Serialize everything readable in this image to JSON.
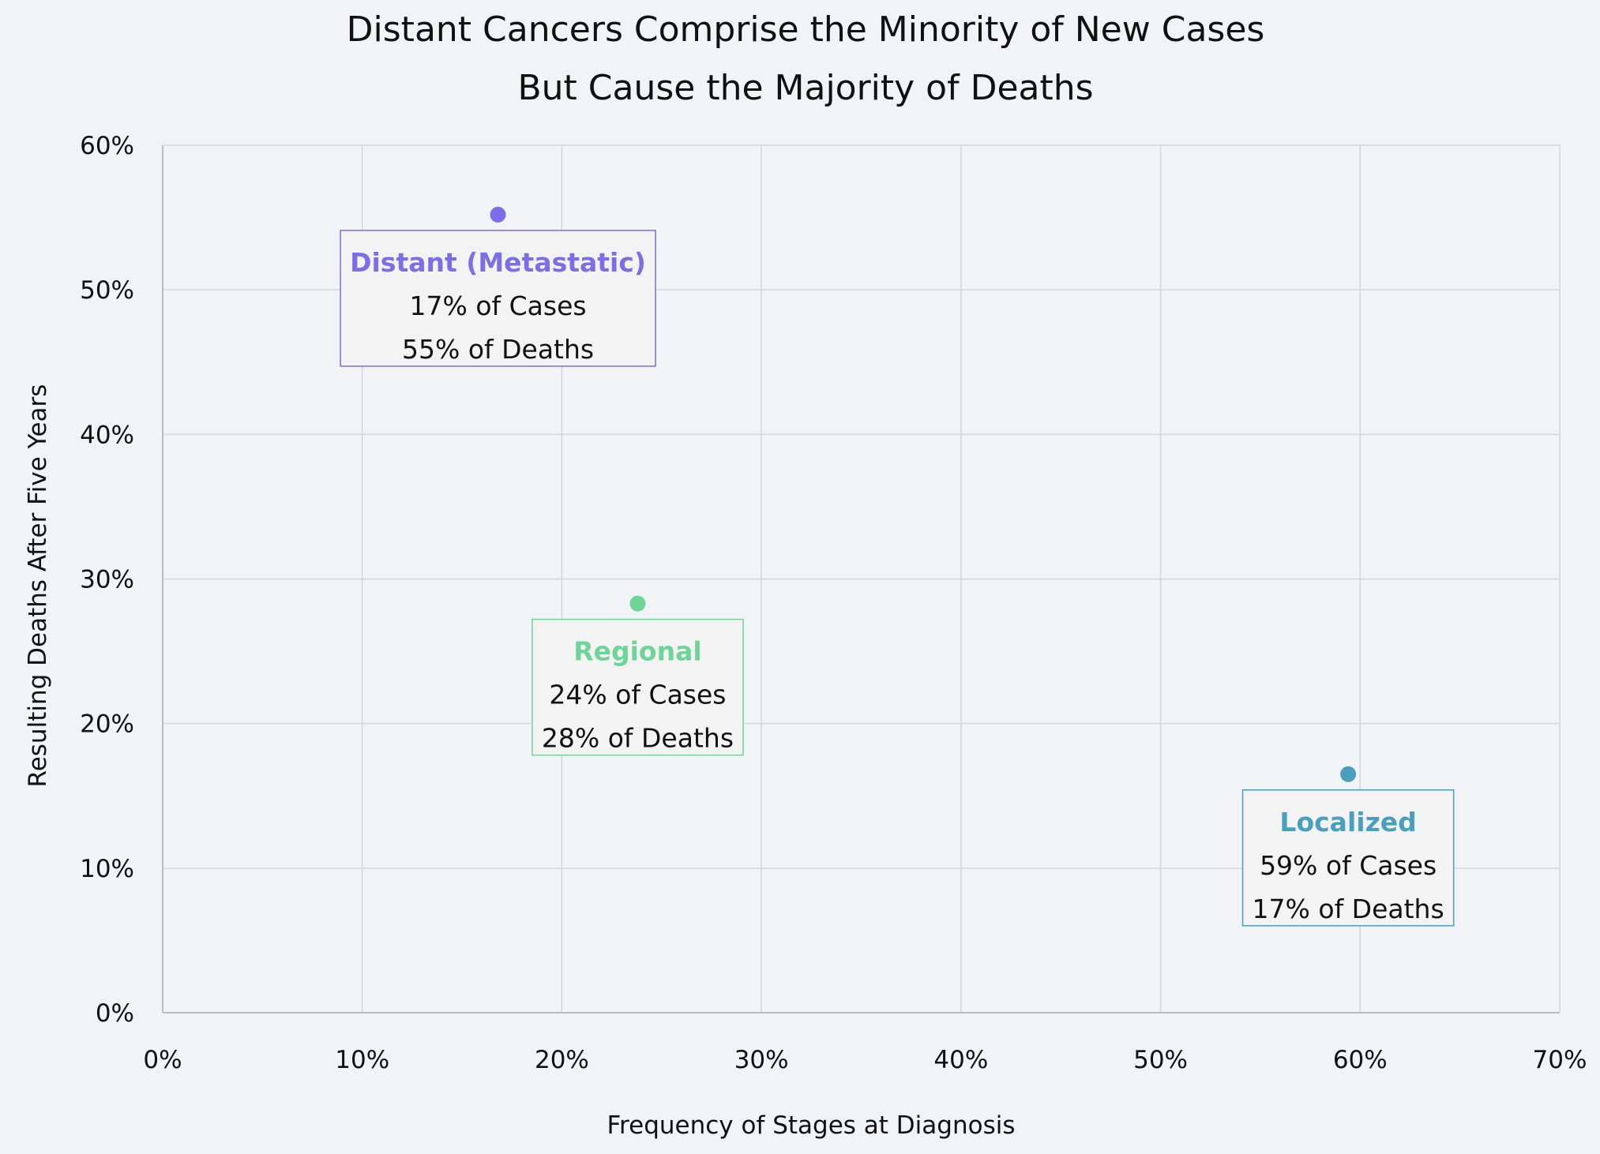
{
  "chart_data": {
    "type": "scatter",
    "title": "Distant Cancers Comprise the Minority of New Cases",
    "subtitle": "But Cause the Majority of Deaths",
    "xlabel": "Frequency of Stages at Diagnosis",
    "ylabel": "Resulting Deaths After Five Years",
    "xlim": [
      0,
      70
    ],
    "ylim": [
      0,
      60
    ],
    "x_ticks": [
      "0%",
      "10%",
      "20%",
      "30%",
      "40%",
      "50%",
      "60%",
      "70%"
    ],
    "y_ticks": [
      "0%",
      "10%",
      "20%",
      "30%",
      "40%",
      "50%",
      "60%"
    ],
    "grid": true,
    "background_color": "#f2f3f6",
    "grid_color": "#d4d6da",
    "axis_color": "#b9bcc3",
    "points": [
      {
        "name": "Distant (Metastatic)",
        "x": 16.8,
        "y": 55.2,
        "color": "#7b6ee8",
        "cases_label": "17% of Cases",
        "deaths_label": "55% of Deaths"
      },
      {
        "name": "Regional",
        "x": 23.8,
        "y": 28.3,
        "color": "#6fd498",
        "cases_label": "24% of Cases",
        "deaths_label": "28% of Deaths"
      },
      {
        "name": "Localized",
        "x": 59.4,
        "y": 16.5,
        "color": "#4a9fbe",
        "cases_label": "59% of Cases",
        "deaths_label": "17% of Deaths"
      }
    ]
  }
}
